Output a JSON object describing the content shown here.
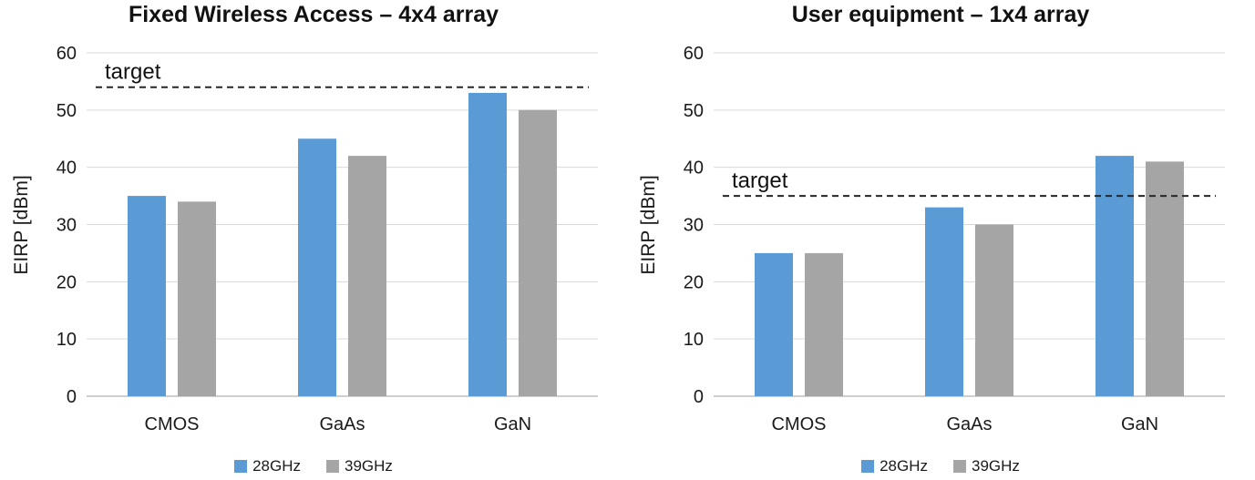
{
  "colors": {
    "series_28ghz": "#5B9BD5",
    "series_39ghz": "#A5A5A5",
    "gridline": "#D9D9D9",
    "axis_line": "#BFBFBF",
    "target_line": "#262626",
    "text": "#1a1a1a"
  },
  "chart_data": [
    {
      "type": "bar",
      "title": "Fixed Wireless Access – 4x4 array",
      "ylabel": "EIRP [dBm]",
      "categories": [
        "CMOS",
        "GaAs",
        "GaN"
      ],
      "series": [
        {
          "name": "28GHz",
          "color": "#5B9BD5",
          "values": [
            35,
            45,
            53
          ]
        },
        {
          "name": "39GHz",
          "color": "#A5A5A5",
          "values": [
            34,
            42,
            50
          ]
        }
      ],
      "target": {
        "label": "target",
        "value": 54
      },
      "ylim": [
        0,
        60
      ],
      "yticks": [
        0,
        10,
        20,
        30,
        40,
        50,
        60
      ],
      "grid": true,
      "legend_position": "bottom"
    },
    {
      "type": "bar",
      "title": "User equipment – 1x4 array",
      "ylabel": "EIRP [dBm]",
      "categories": [
        "CMOS",
        "GaAs",
        "GaN"
      ],
      "series": [
        {
          "name": "28GHz",
          "color": "#5B9BD5",
          "values": [
            25,
            33,
            42
          ]
        },
        {
          "name": "39GHz",
          "color": "#A5A5A5",
          "values": [
            25,
            30,
            41
          ]
        }
      ],
      "target": {
        "label": "target",
        "value": 35
      },
      "ylim": [
        0,
        60
      ],
      "yticks": [
        0,
        10,
        20,
        30,
        40,
        50,
        60
      ],
      "grid": true,
      "legend_position": "bottom"
    }
  ]
}
